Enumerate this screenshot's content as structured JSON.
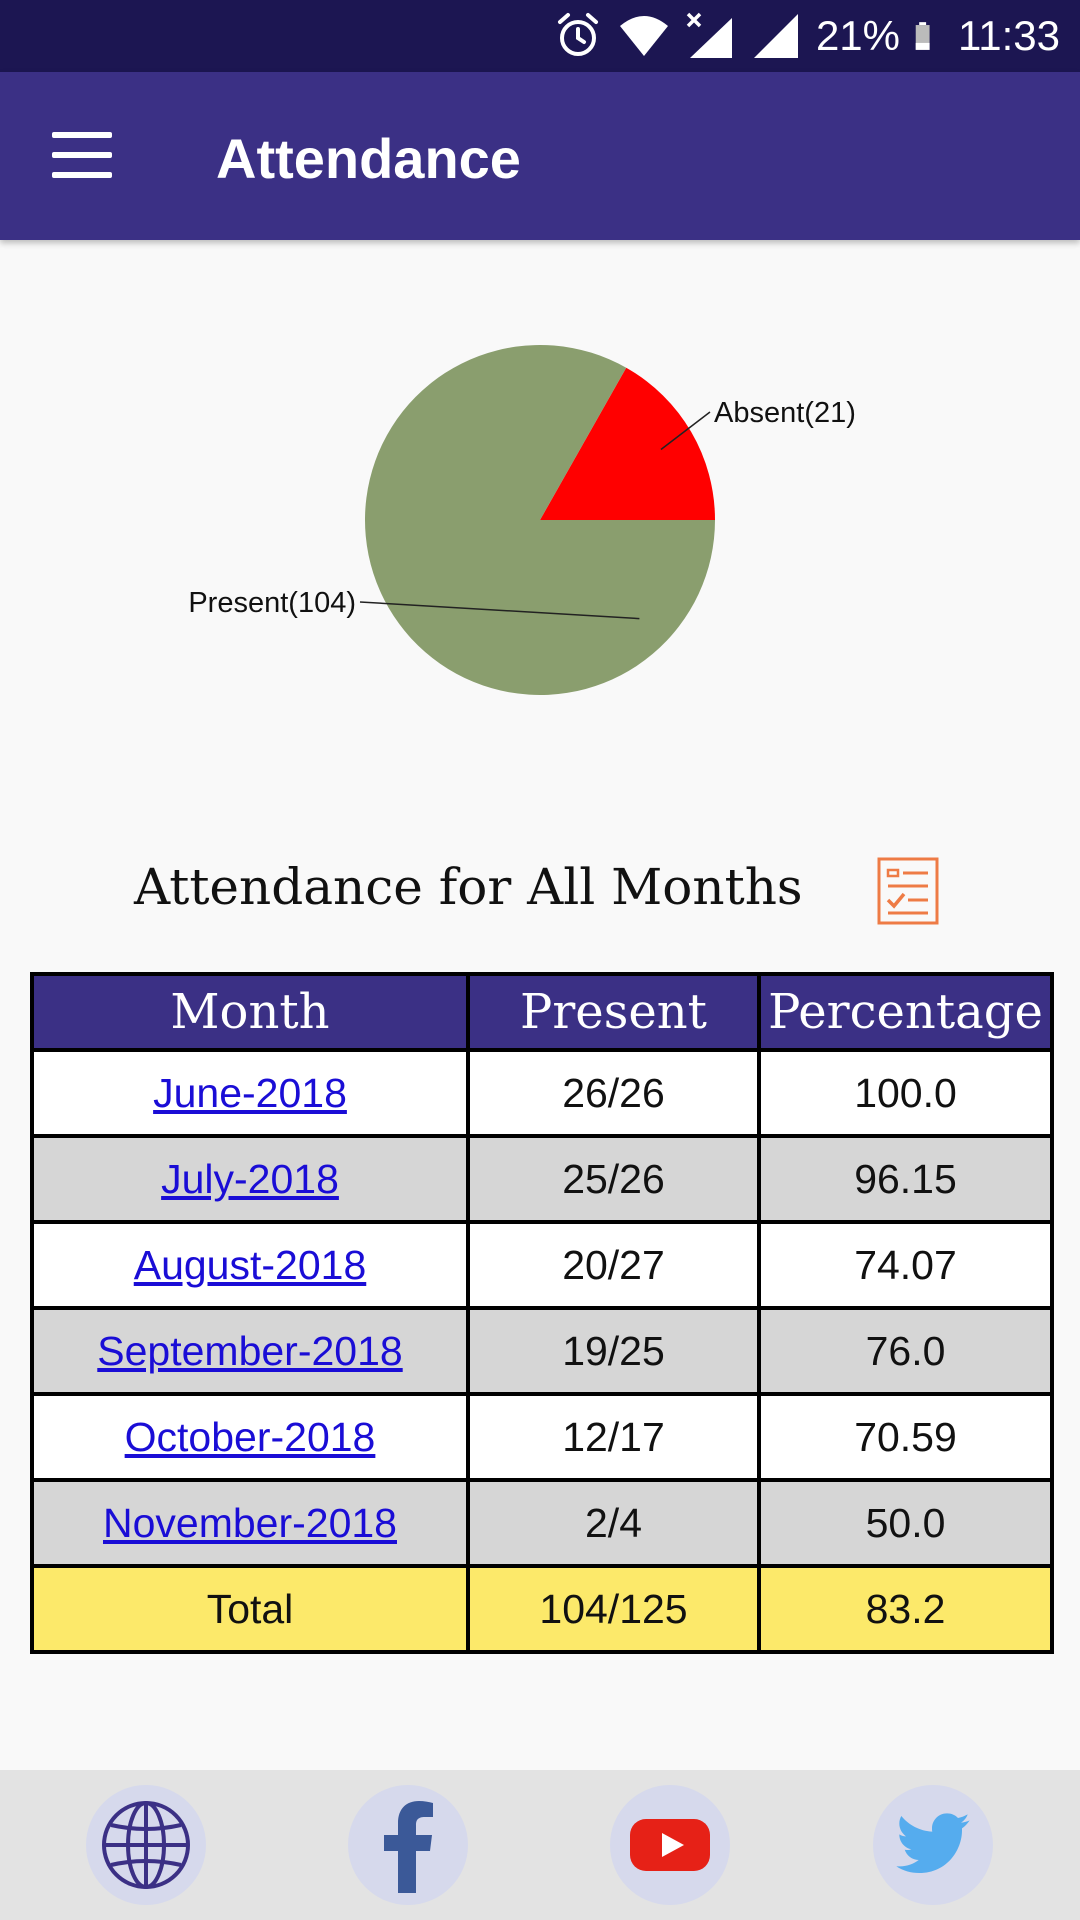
{
  "status_bar": {
    "battery": "21%",
    "time": "11:33",
    "icons": [
      "alarm-icon",
      "wifi-icon",
      "signal-no-sim-icon",
      "signal-icon",
      "battery-icon"
    ]
  },
  "app_bar": {
    "title": "Attendance",
    "menu_icon": "menu-icon",
    "color": "#3b3085"
  },
  "chart_data": {
    "type": "pie",
    "slices": [
      {
        "label": "Absent(21)",
        "name": "Absent",
        "value": 21,
        "color": "#ff0000"
      },
      {
        "label": "Present(104)",
        "name": "Present",
        "value": 104,
        "color": "#8a9e6e"
      }
    ]
  },
  "section": {
    "title": "Attendance for All Months",
    "icon": "report-checklist-icon"
  },
  "table": {
    "headers": [
      "Month",
      "Present",
      "Percentage"
    ],
    "rows": [
      {
        "month": "June-2018",
        "present": "26/26",
        "percentage": "100.0"
      },
      {
        "month": "July-2018",
        "present": "25/26",
        "percentage": "96.15"
      },
      {
        "month": "August-2018",
        "present": "20/27",
        "percentage": "74.07"
      },
      {
        "month": "September-2018",
        "present": "19/25",
        "percentage": "76.0"
      },
      {
        "month": "October-2018",
        "present": "12/17",
        "percentage": "70.59"
      },
      {
        "month": "November-2018",
        "present": "2/4",
        "percentage": "50.0"
      }
    ],
    "total": {
      "label": "Total",
      "present": "104/125",
      "percentage": "83.2"
    }
  },
  "bottom_bar": {
    "links": [
      "globe-icon",
      "facebook-icon",
      "youtube-icon",
      "twitter-icon"
    ]
  }
}
